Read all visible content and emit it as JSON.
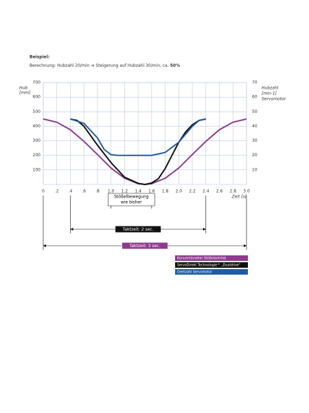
{
  "chart_data": {
    "type": "line",
    "heading": "Beispiel:",
    "subtitle_parts": [
      "Berechnung: Hubzahl 20/min",
      "Steigerung auf Hubzahl 30/min, ca.",
      "50%"
    ],
    "y_label": [
      "Hub",
      "[mm]"
    ],
    "y2_label": [
      "Hubzahl",
      "[min-1]",
      "Servomotor"
    ],
    "x_label": "Zeit [s]",
    "xlim": [
      0,
      3.0
    ],
    "xticks": [
      0,
      {
        "value": 0.2,
        "label": ".2"
      },
      {
        "value": 0.4,
        "label": ".4"
      },
      {
        "value": 0.6,
        "label": ".6"
      },
      {
        "value": 0.8,
        "label": ".8"
      },
      {
        "value": 1.0,
        "label": "1.0"
      },
      1.2,
      1.4,
      1.6,
      1.8,
      {
        "value": 2.0,
        "label": "2.0"
      },
      2.2,
      2.4,
      2.6,
      2.8,
      {
        "value": 3.0,
        "label": "3.0"
      }
    ],
    "ylim": [
      0,
      700
    ],
    "yticks": [
      100,
      200,
      300,
      400,
      500,
      600,
      700
    ],
    "y2lim": [
      0,
      70
    ],
    "y2ticks": [
      10,
      20,
      30,
      40,
      50,
      60,
      70
    ],
    "grid": true,
    "series": [
      {
        "name": "Konventioneller Stößelantrieb",
        "color": "#8e3a8f",
        "x": [
          0,
          0.2,
          0.4,
          0.6,
          0.8,
          1.0,
          1.2,
          1.4,
          1.5,
          1.6,
          1.8,
          2.0,
          2.2,
          2.4,
          2.6,
          2.8,
          3.0
        ],
        "values": [
          450,
          428,
          376,
          296,
          206,
          113,
          43,
          5,
          0,
          5,
          43,
          113,
          206,
          296,
          376,
          428,
          450
        ]
      },
      {
        "name": "ServoDirekt Technologie™ „Dualdrive“",
        "color": "#111111",
        "x": [
          0.4,
          0.5,
          0.6,
          0.8,
          1.0,
          1.2,
          1.4,
          1.5,
          1.6,
          1.7,
          1.8,
          1.9,
          2.0,
          2.1,
          2.2,
          2.3,
          2.4
        ],
        "values": [
          450,
          440,
          400,
          270,
          150,
          50,
          8,
          0,
          10,
          40,
          110,
          200,
          290,
          360,
          410,
          440,
          450
        ]
      },
      {
        "name": "Drehzahl Servomotor",
        "color": "#1f5ba6",
        "x": [
          0.4,
          0.6,
          0.8,
          0.9,
          1.0,
          1.1,
          1.6,
          1.8,
          2.0,
          2.2,
          2.3,
          2.4
        ],
        "values": [
          450,
          420,
          320,
          240,
          205,
          200,
          200,
          220,
          290,
          400,
          440,
          450
        ]
      }
    ],
    "annotations": [
      {
        "text": [
          "Stößelbewegung",
          "wie bisher"
        ],
        "from": 1.0,
        "to": 1.6,
        "color": "#ffffff"
      },
      {
        "text": [
          "Taktzeit: 2 sec."
        ],
        "from": 0.4,
        "to": 2.4,
        "color": "#111111"
      },
      {
        "text": [
          "Taktzeit: 3 sec."
        ],
        "from": 0,
        "to": 3.0,
        "color": "#8e3a8f"
      }
    ]
  }
}
